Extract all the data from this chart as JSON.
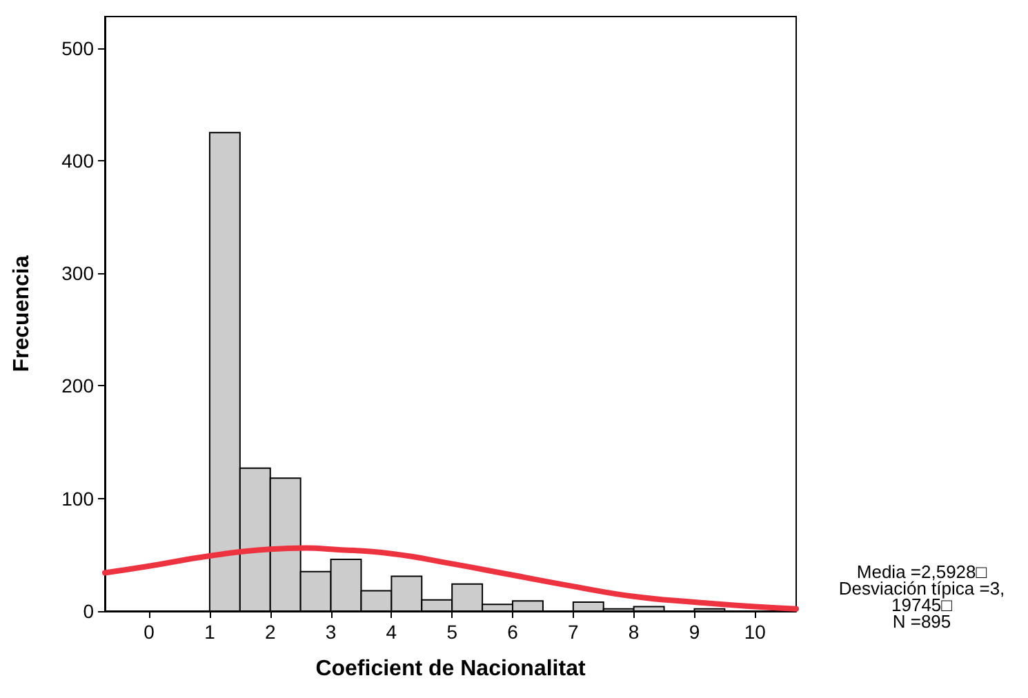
{
  "chart_data": {
    "type": "histogram",
    "xlabel": "Coeficient de Nacionalitat",
    "ylabel": "Frecuencia",
    "bins": [
      1,
      1.5,
      2,
      2.5,
      3,
      3.5,
      4,
      4.5,
      5,
      5.5,
      6,
      6.5,
      7,
      7.5,
      8,
      8.5,
      9,
      9.5,
      10,
      10.5
    ],
    "values": [
      425,
      127,
      118,
      35,
      46,
      18,
      31,
      10,
      24,
      6,
      9,
      0,
      8,
      2,
      4,
      0,
      2,
      null,
      null
    ],
    "color": "#cccccc",
    "series": [
      {
        "type": "line",
        "color": "#ee3340",
        "x": [
          -0.73,
          0,
          1,
          2,
          2.6,
          3,
          4,
          5,
          6,
          7,
          8,
          9,
          10,
          10.68
        ],
        "values": [
          34,
          40,
          49,
          55,
          56,
          55,
          51,
          42,
          32,
          22,
          13,
          8,
          4,
          2
        ]
      }
    ],
    "xlim": [
      -0.73,
      10.68
    ],
    "xticks": [
      0,
      1,
      2,
      3,
      4,
      5,
      6,
      7,
      8,
      9,
      10
    ],
    "ylim": [
      0,
      528
    ],
    "yticks": [
      0,
      100,
      200,
      300,
      400,
      500
    ],
    "grid": false,
    "legend": false,
    "marker": "none",
    "line_style": "solid",
    "annotations": [
      "Media =2,5928□",
      "Desviación típica =3,",
      "19745□",
      "N =895"
    ]
  }
}
